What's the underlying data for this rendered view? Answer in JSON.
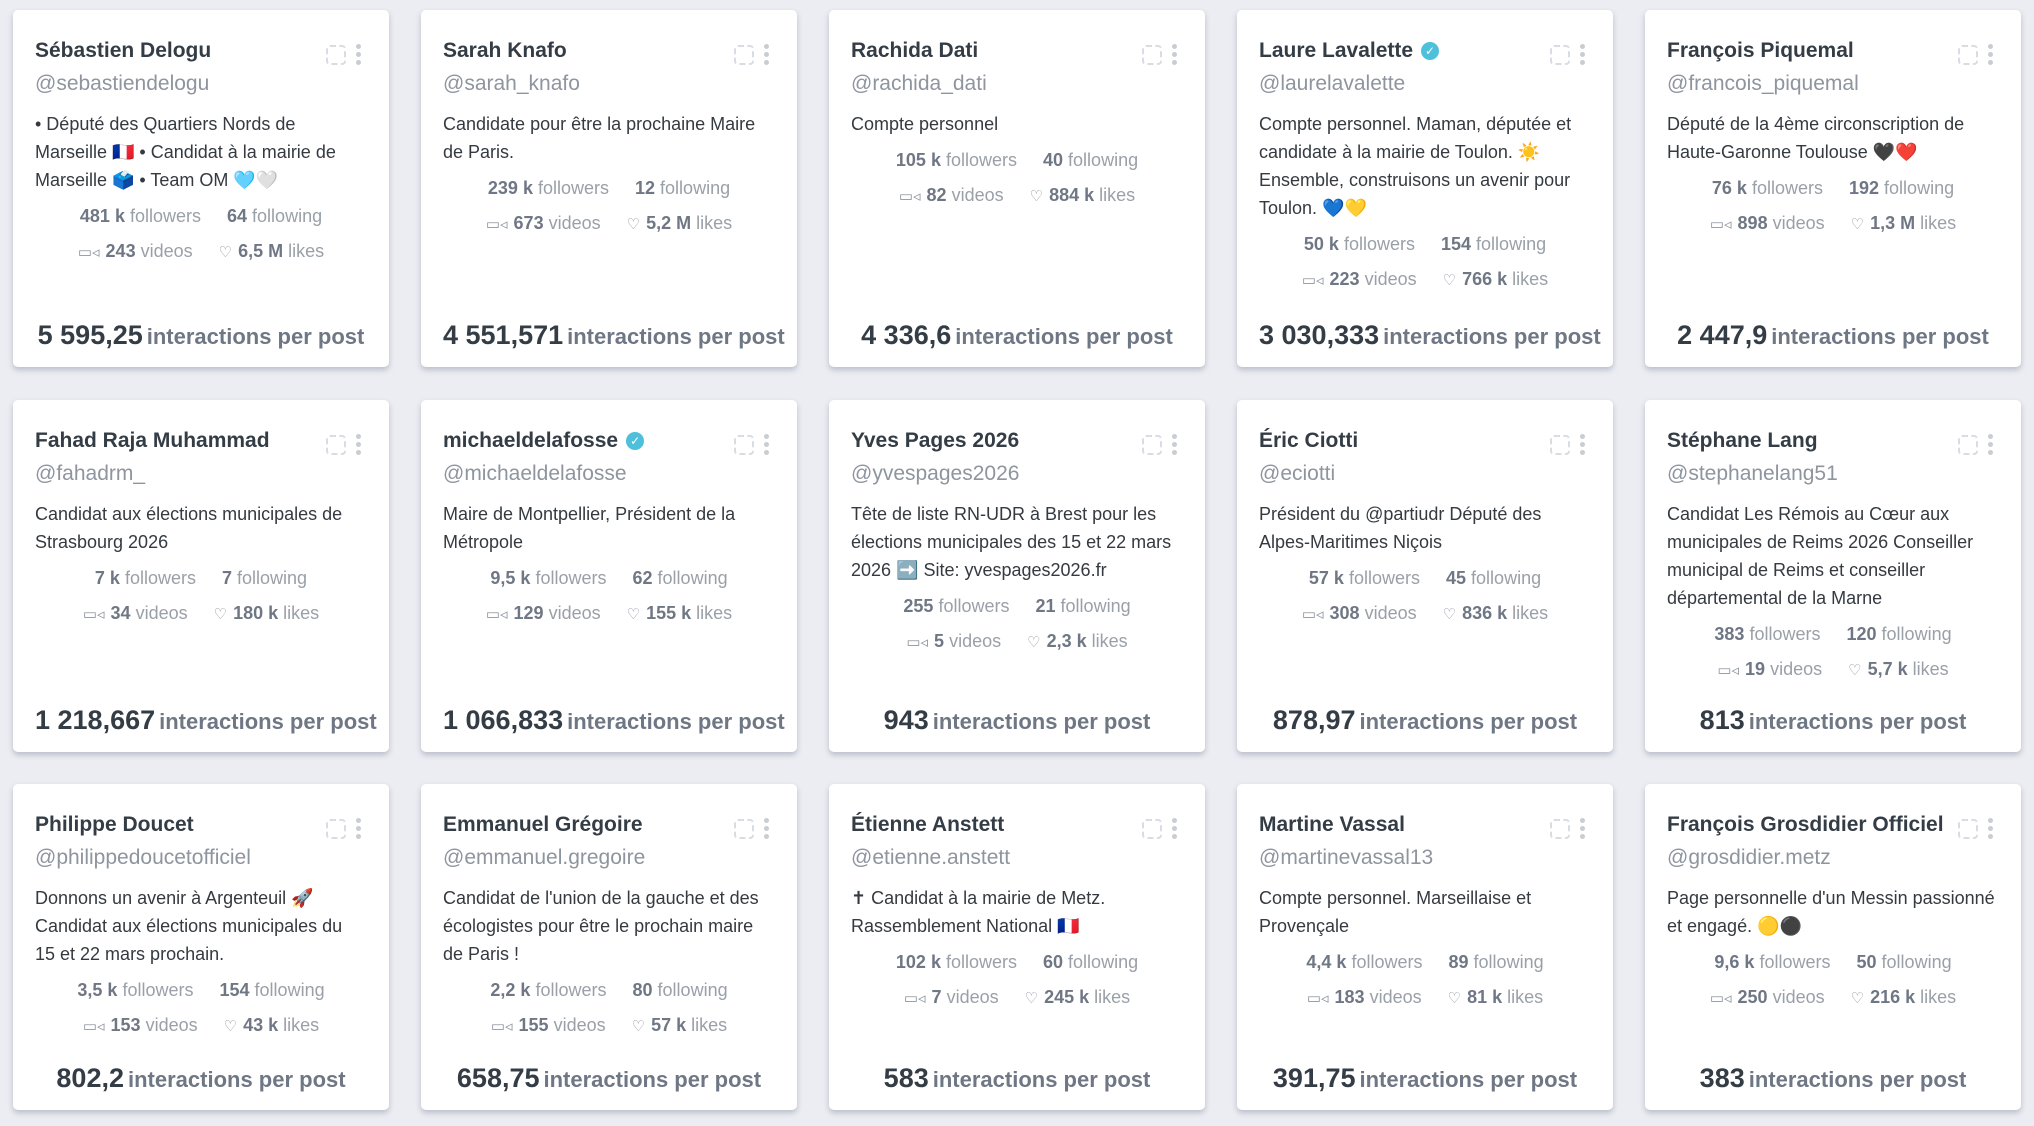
{
  "cards": [
    {
      "name": "Sébastien Delogu",
      "verified": false,
      "handle": "@sebastiendelogu",
      "bio": "• Député des Quartiers Nords de Marseille 🇫🇷 • Candidat à la mairie de Marseille 🗳️ • Team OM 🩵🤍",
      "followers": "481 k",
      "following": "64",
      "videos": "243",
      "likes": "6,5 M",
      "ipp": "5 595,25"
    },
    {
      "name": "Sarah Knafo",
      "verified": false,
      "handle": "@sarah_knafo",
      "bio": "Candidate pour être la prochaine Maire de Paris.",
      "followers": "239 k",
      "following": "12",
      "videos": "673",
      "likes": "5,2 M",
      "ipp": "4 551,571"
    },
    {
      "name": "Rachida Dati",
      "verified": false,
      "handle": "@rachida_dati",
      "bio": "Compte personnel",
      "followers": "105 k",
      "following": "40",
      "videos": "82",
      "likes": "884 k",
      "ipp": "4 336,6"
    },
    {
      "name": "Laure Lavalette",
      "verified": true,
      "handle": "@laurelavalette",
      "bio": "Compte personnel. Maman, députée et candidate à la mairie de Toulon. ☀️ Ensemble, construisons un avenir pour Toulon. 💙💛",
      "followers": "50 k",
      "following": "154",
      "videos": "223",
      "likes": "766 k",
      "ipp": "3 030,333"
    },
    {
      "name": "François Piquemal",
      "verified": false,
      "handle": "@francois_piquemal",
      "bio": "Député de la 4ème circonscription de Haute-Garonne Toulouse 🖤❤️",
      "followers": "76 k",
      "following": "192",
      "videos": "898",
      "likes": "1,3 M",
      "ipp": "2 447,9"
    },
    {
      "name": "Fahad Raja Muhammad",
      "verified": false,
      "handle": "@fahadrm_",
      "bio": "Candidat aux élections municipales de Strasbourg 2026",
      "followers": "7 k",
      "following": "7",
      "videos": "34",
      "likes": "180 k",
      "ipp": "1 218,667"
    },
    {
      "name": "michaeldelafosse",
      "verified": true,
      "handle": "@michaeldelafosse",
      "bio": "Maire de Montpellier, Président de la Métropole",
      "followers": "9,5 k",
      "following": "62",
      "videos": "129",
      "likes": "155 k",
      "ipp": "1 066,833"
    },
    {
      "name": "Yves Pages 2026",
      "verified": false,
      "handle": "@yvespages2026",
      "bio": "Tête de liste RN-UDR à Brest pour les élections municipales des 15 et 22 mars 2026 ➡️ Site: yvespages2026.fr",
      "followers": "255",
      "following": "21",
      "videos": "5",
      "likes": "2,3 k",
      "ipp": "943"
    },
    {
      "name": "Éric Ciotti",
      "verified": false,
      "handle": "@eciotti",
      "bio": "Président du @partiudr Député des Alpes-Maritimes Niçois",
      "followers": "57 k",
      "following": "45",
      "videos": "308",
      "likes": "836 k",
      "ipp": "878,97"
    },
    {
      "name": "Stéphane Lang",
      "verified": false,
      "handle": "@stephanelang51",
      "bio": "Candidat Les Rémois au Cœur aux municipales de Reims 2026 Conseiller municipal de Reims et conseiller départemental de la Marne",
      "followers": "383",
      "following": "120",
      "videos": "19",
      "likes": "5,7 k",
      "ipp": "813"
    },
    {
      "name": "Philippe Doucet",
      "verified": false,
      "handle": "@philippedoucetofficiel",
      "bio": "Donnons un avenir à Argenteuil 🚀 Candidat aux élections municipales du 15 et 22 mars prochain.",
      "followers": "3,5 k",
      "following": "154",
      "videos": "153",
      "likes": "43 k",
      "ipp": "802,2"
    },
    {
      "name": "Emmanuel Grégoire",
      "verified": false,
      "handle": "@emmanuel.gregoire",
      "bio": "Candidat de l'union de la gauche et des écologistes pour être le prochain maire de Paris !",
      "followers": "2,2 k",
      "following": "80",
      "videos": "155",
      "likes": "57 k",
      "ipp": "658,75"
    },
    {
      "name": "Étienne Anstett",
      "verified": false,
      "handle": "@etienne.anstett",
      "bio": "✝ Candidat à la mairie de Metz. Rassemblement National 🇫🇷",
      "followers": "102 k",
      "following": "60",
      "videos": "7",
      "likes": "245 k",
      "ipp": "583"
    },
    {
      "name": "Martine Vassal",
      "verified": false,
      "handle": "@martinevassal13",
      "bio": "Compte personnel. Marseillaise et Provençale",
      "followers": "4,4 k",
      "following": "89",
      "videos": "183",
      "likes": "81 k",
      "ipp": "391,75"
    },
    {
      "name": "François Grosdidier Officiel",
      "verified": false,
      "handle": "@grosdidier.metz",
      "bio": "Page personnelle d'un Messin passionné et engagé. 🟡⚫",
      "followers": "9,6 k",
      "following": "50",
      "videos": "250",
      "likes": "216 k",
      "ipp": "383"
    }
  ],
  "labels": {
    "followers": "followers",
    "following": "following",
    "videos": "videos",
    "likes": "likes",
    "ipp": "interactions per post",
    "verified": "✓"
  },
  "colors": {
    "verified": "#4fc0dc",
    "background": "#ebedf2"
  }
}
